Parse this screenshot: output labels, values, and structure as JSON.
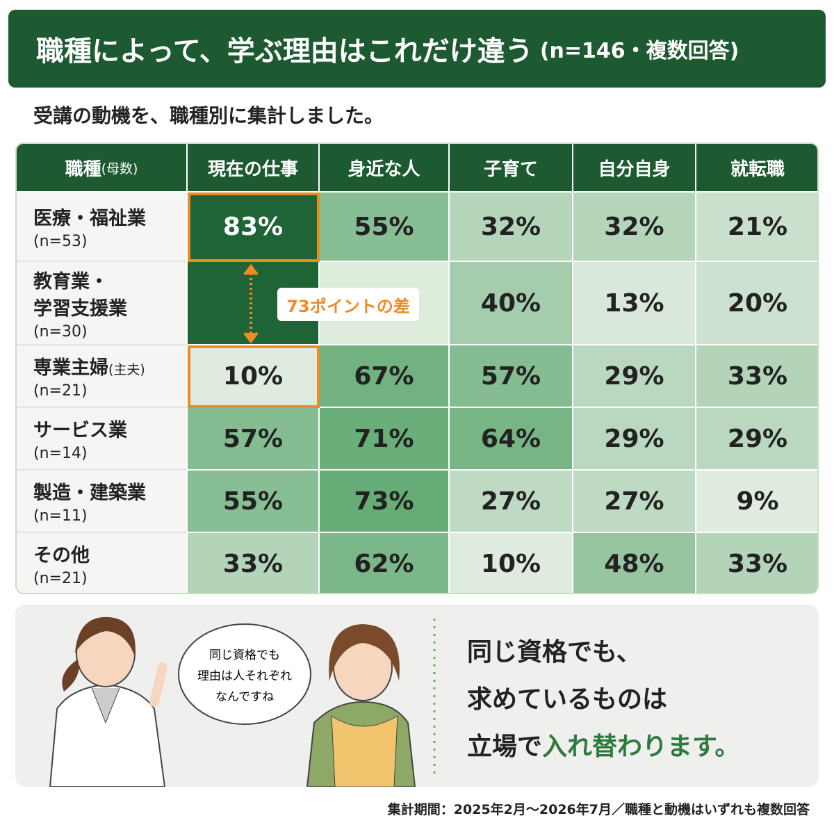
{
  "header": {
    "title": "職種によって、学ぶ理由はこれだけ違う",
    "title_note": "(n=146・複数回答)"
  },
  "subtitle": "受講の動機を、職種別に集計しました。",
  "table": {
    "corner": {
      "label": "職種",
      "note": "(母数)"
    },
    "columns": [
      "現在の仕事",
      "身近な人",
      "子育て",
      "自分自身",
      "就転職"
    ],
    "rows": [
      {
        "label": [
          "医療・福祉業"
        ],
        "n": "(n=53)",
        "cells": [
          "83%",
          "55%",
          "32%",
          "32%",
          "21%"
        ]
      },
      {
        "label": [
          "教育業・",
          "学習支援業"
        ],
        "n": "(n=30)",
        "cells": [
          null,
          null,
          "40%",
          "13%",
          "20%"
        ]
      },
      {
        "label": [
          "専業主婦"
        ],
        "label_note": "(主夫)",
        "n": "(n=21)",
        "cells": [
          "10%",
          "67%",
          "57%",
          "29%",
          "33%"
        ]
      },
      {
        "label": [
          "サービス業"
        ],
        "n": "(n=14)",
        "cells": [
          "57%",
          "71%",
          "64%",
          "29%",
          "29%"
        ]
      },
      {
        "label": [
          "製造・建築業"
        ],
        "n": "(n=11)",
        "cells": [
          "55%",
          "73%",
          "27%",
          "27%",
          "9%"
        ]
      },
      {
        "label": [
          "その他"
        ],
        "n": "(n=21)",
        "cells": [
          "33%",
          "62%",
          "10%",
          "48%",
          "33%"
        ]
      }
    ]
  },
  "annotation": "73ポイントの差",
  "speech": [
    "同じ資格でも",
    "理由は人それぞれ",
    "なんですね"
  ],
  "message": {
    "lines": [
      "同じ資格でも、",
      "求めているものは"
    ],
    "last_plain": "立場で",
    "last_highlight": "入れ替わります。"
  },
  "footer": "集計期間：2025年2月〜2026年7月／職種と動機はいずれも複数回答"
}
